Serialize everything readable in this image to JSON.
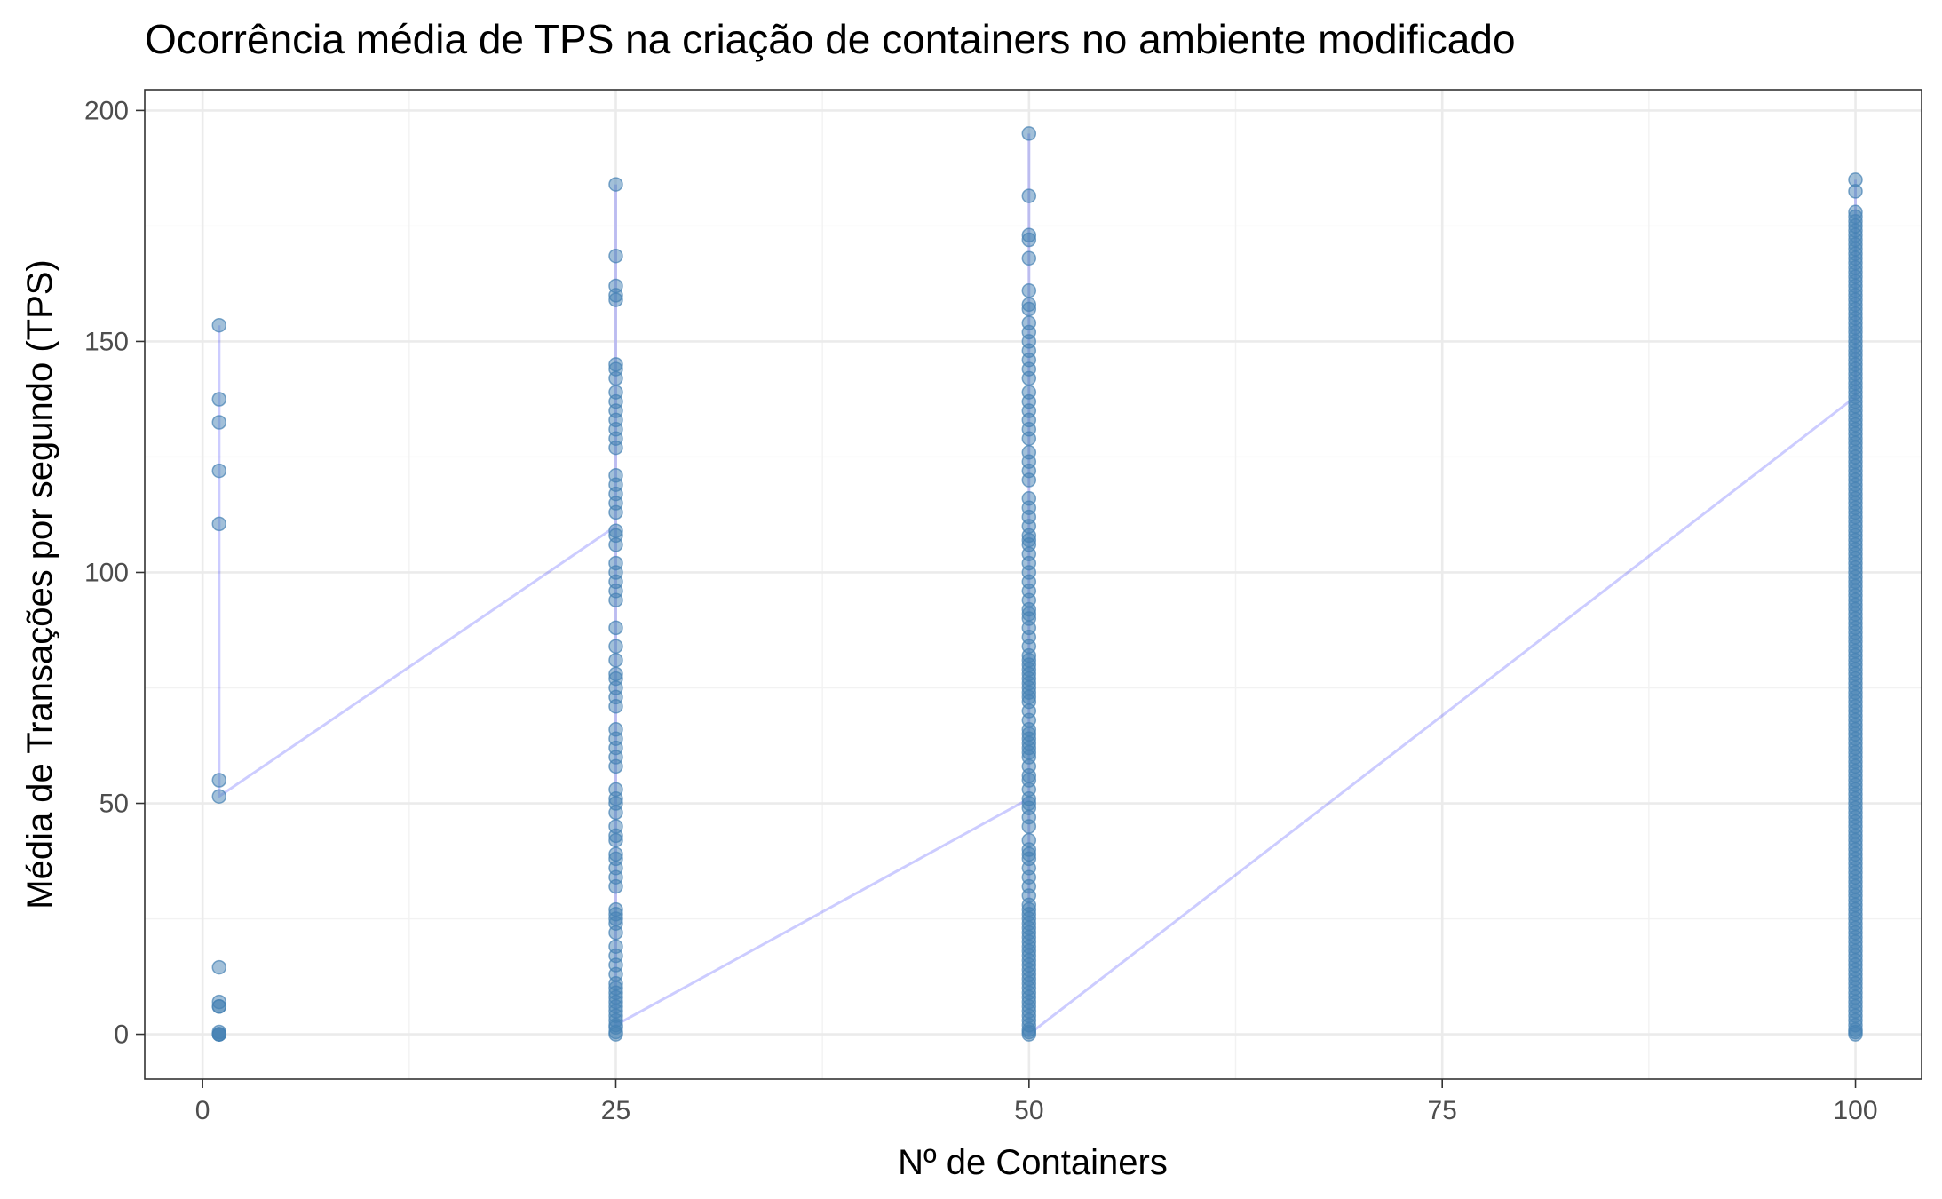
{
  "chart_data": {
    "type": "scatter",
    "title": "Ocorrência média de TPS na criação de containers no ambiente modificado",
    "xlabel": "Nº de Containers",
    "ylabel": "Média de Transações por segundo (TPS)",
    "xlim": [
      -3.5,
      104
    ],
    "ylim": [
      -9.7,
      204.5
    ],
    "x_ticks": [
      0,
      25,
      50,
      75,
      100
    ],
    "x_tick_labels": [
      "0",
      "25",
      "50",
      "75",
      "100"
    ],
    "y_ticks": [
      0,
      50,
      100,
      150,
      200
    ],
    "y_tick_labels": [
      "0",
      "50",
      "100",
      "150",
      "200"
    ],
    "grid": true,
    "legend": "none",
    "colors": {
      "points": "#4682b4",
      "line": "#0000ff"
    },
    "series": [
      {
        "x": 1,
        "values": [
          0,
          0,
          0,
          0,
          0.5,
          6,
          6,
          7,
          14.5,
          51.5,
          55,
          110.5,
          122,
          132.5,
          137.5,
          153.5
        ]
      },
      {
        "x": 25,
        "values": [
          0,
          0.5,
          1.5,
          2,
          3,
          4,
          5,
          6,
          7,
          8,
          9,
          10,
          11,
          13,
          15,
          17,
          19,
          22,
          24,
          25,
          26,
          27,
          32,
          34,
          36,
          38,
          39,
          42,
          43,
          45,
          48,
          50,
          51,
          53,
          58,
          60,
          62,
          64,
          66,
          71,
          73,
          75,
          77,
          78,
          81,
          84,
          88,
          94,
          96,
          98,
          100,
          102,
          106,
          108,
          109,
          113,
          115,
          117,
          119,
          121,
          127,
          129,
          131,
          133,
          135,
          137,
          139,
          142,
          144,
          145,
          159,
          160,
          162,
          168.5,
          184
        ]
      },
      {
        "x": 50,
        "values": [
          0,
          0.5,
          1,
          2,
          3,
          4,
          5,
          6,
          7,
          8,
          9,
          10,
          11,
          12,
          13,
          14,
          15,
          16,
          17,
          18,
          19,
          20,
          21,
          22,
          23,
          24,
          25,
          26,
          27,
          28,
          30,
          32,
          34,
          36,
          38,
          39,
          40,
          42,
          45,
          47,
          49,
          50,
          51,
          53,
          55,
          56,
          58,
          60,
          61,
          62,
          63,
          64,
          65,
          66,
          68,
          70,
          72,
          73,
          74,
          75,
          76,
          77,
          78,
          79,
          80,
          81,
          82,
          84,
          86,
          88,
          90,
          91,
          92,
          94,
          96,
          98,
          100,
          102,
          104,
          106,
          107,
          108,
          110,
          112,
          114,
          116,
          120,
          122,
          124,
          126,
          129,
          131,
          133,
          135,
          137,
          139,
          142,
          144,
          146,
          148,
          150,
          152,
          154,
          157,
          158,
          161,
          168,
          172,
          173,
          181.5,
          195
        ]
      },
      {
        "x": 100,
        "values": [
          0,
          0.5,
          1,
          2,
          3,
          4,
          5,
          6,
          7,
          8,
          9,
          10,
          11,
          12,
          13,
          14,
          15,
          16,
          17,
          18,
          19,
          20,
          21,
          22,
          23,
          24,
          25,
          26,
          27,
          28,
          29,
          30,
          31,
          32,
          33,
          34,
          35,
          36,
          37,
          38,
          39,
          40,
          41,
          42,
          43,
          44,
          45,
          46,
          47,
          48,
          49,
          50,
          51,
          52,
          53,
          54,
          55,
          56,
          57,
          58,
          59,
          60,
          61,
          62,
          63,
          64,
          65,
          66,
          67,
          68,
          69,
          70,
          71,
          72,
          73,
          74,
          75,
          76,
          77,
          78,
          79,
          80,
          81,
          82,
          83,
          84,
          85,
          86,
          87,
          88,
          89,
          90,
          91,
          92,
          93,
          94,
          95,
          96,
          97,
          98,
          99,
          100,
          101,
          102,
          103,
          104,
          105,
          106,
          107,
          108,
          109,
          110,
          111,
          112,
          113,
          114,
          115,
          116,
          117,
          118,
          119,
          120,
          121,
          122,
          123,
          124,
          125,
          126,
          127,
          128,
          129,
          130,
          131,
          132,
          133,
          134,
          135,
          136,
          137,
          138,
          139,
          140,
          141,
          142,
          143,
          144,
          145,
          146,
          147,
          148,
          149,
          150,
          151,
          152,
          153,
          154,
          155,
          156,
          157,
          158,
          159,
          160,
          161,
          162,
          163,
          164,
          165,
          166,
          167,
          168,
          169,
          170,
          171,
          172,
          173,
          174,
          175,
          176,
          177,
          178,
          182.5,
          185
        ]
      }
    ],
    "trend_path": [
      [
        1,
        153.5
      ],
      [
        1,
        51.5
      ],
      [
        25,
        110
      ],
      [
        25,
        184
      ],
      [
        25,
        2
      ],
      [
        50,
        51
      ],
      [
        50,
        195
      ],
      [
        50,
        0
      ],
      [
        100,
        138
      ],
      [
        100,
        185
      ]
    ]
  }
}
